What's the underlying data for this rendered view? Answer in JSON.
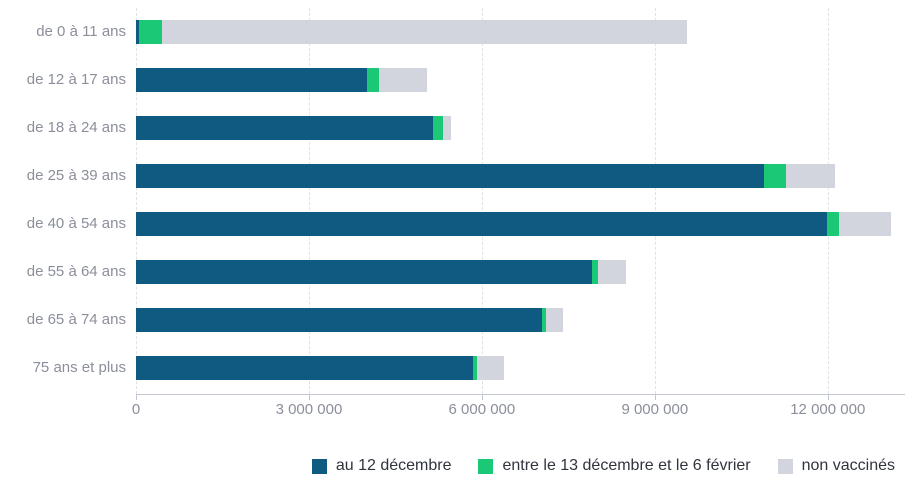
{
  "chart_data": {
    "type": "bar",
    "orientation": "horizontal",
    "stacked": true,
    "title": "",
    "xlabel": "",
    "ylabel": "",
    "grid": "vertical-dashed",
    "legend_position": "bottom-right",
    "xlim": [
      0,
      13340000
    ],
    "categories": [
      "de 0 à 11 ans",
      "de 12 à 17 ans",
      "de 18 à 24 ans",
      "de 25 à 39 ans",
      "de 40 à 54 ans",
      "de 55 à 64 ans",
      "de 65 à 74 ans",
      "75 ans et plus"
    ],
    "series": [
      {
        "name": "au 12 décembre",
        "color": "#0e5a80",
        "values": [
          50000,
          4000000,
          5150000,
          10890000,
          11980000,
          7910000,
          7040000,
          5840000
        ]
      },
      {
        "name": "entre le 13 décembre et le 6 février",
        "color": "#1bc876",
        "values": [
          400000,
          210000,
          175000,
          380000,
          210000,
          105000,
          70000,
          70000
        ]
      },
      {
        "name": "non vaccinés",
        "color": "#d2d4de",
        "values": [
          9100000,
          830000,
          140000,
          850000,
          900000,
          485000,
          295000,
          470000
        ]
      }
    ],
    "x_axis": {
      "ticks": [
        {
          "value": 0,
          "label": "0"
        },
        {
          "value": 3000000,
          "label": "3 000 000"
        },
        {
          "value": 6000000,
          "label": "6 000 000"
        },
        {
          "value": 9000000,
          "label": "9 000 000"
        },
        {
          "value": 12000000,
          "label": "12 000 000"
        }
      ]
    }
  },
  "layout_colors": {
    "gridline": "#dfe2e8",
    "axis_line": "#c3c7d1",
    "axis_label": "#8b8f9b",
    "category_label": "#8b8f9b",
    "legend_text": "#30343e",
    "background": "#ffffff"
  }
}
